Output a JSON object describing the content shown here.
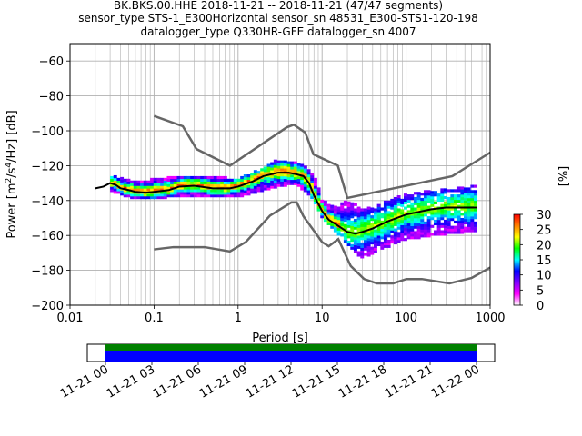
{
  "title": {
    "line1": "BK.BKS.00.HHE   2018-11-21 -- 2018-11-21  (47/47 segments)",
    "line2": "sensor_type STS-1_E300Horizontal sensor_sn 48531_E300-STS1-120-198",
    "line3": "datalogger_type Q330HR-GFE datalogger_sn 4007"
  },
  "chart_data": {
    "type": "heatmap",
    "title": "BK.BKS.00.HHE   2018-11-21 -- 2018-11-21  (47/47 segments)",
    "xlabel": "Period [s]",
    "ylabel": "Power [m2/s4/Hz] [dB]",
    "ylabel_parts": {
      "pre": "Power [m",
      "sup1": "2",
      "mid": "/s",
      "sup2": "4",
      "post": "/Hz] [dB]"
    },
    "x_scale": "log",
    "xlim": [
      0.01,
      1000
    ],
    "ylim": [
      -200,
      -50
    ],
    "x_ticks": [
      0.01,
      0.1,
      1,
      10,
      100,
      1000
    ],
    "x_tick_labels": [
      "0.01",
      "0.1",
      "1",
      "10",
      "100",
      "1000"
    ],
    "y_ticks": [
      -200,
      -180,
      -160,
      -140,
      -120,
      -100,
      -80,
      -60
    ],
    "y_tick_labels": [
      "−200",
      "−180",
      "−160",
      "−140",
      "−120",
      "−100",
      "−80",
      "−60"
    ],
    "grid": true,
    "colorbar": {
      "label": "[%]",
      "range": [
        0,
        30
      ],
      "ticks": [
        0,
        5,
        10,
        15,
        20,
        25,
        30
      ],
      "tick_labels": [
        "0",
        "5",
        "10",
        "15",
        "20",
        "25",
        "30"
      ],
      "colormap_stops": [
        "#ffffff",
        "#ff00ff",
        "#8000ff",
        "#0000ff",
        "#00ffff",
        "#00ff00",
        "#ffff00",
        "#ff8000",
        "#ff0000"
      ]
    },
    "noise_models": [
      {
        "name": "NHNM",
        "color": "#666666",
        "x": [
          0.1,
          0.22,
          0.32,
          0.8,
          3.8,
          4.6,
          6.3,
          7.9,
          15.4,
          20,
          354.8,
          1000
        ],
        "y": [
          -91.5,
          -97.4,
          -110.5,
          -120,
          -98,
          -96.5,
          -101,
          -113.5,
          -120,
          -138.5,
          -126,
          -112.5
        ]
      },
      {
        "name": "NLNM",
        "color": "#666666",
        "x": [
          0.1,
          0.17,
          0.4,
          0.8,
          1.24,
          2.4,
          4.3,
          5,
          6,
          10,
          12,
          15.6,
          21.9,
          31.6,
          45,
          70,
          101,
          154,
          328,
          600,
          1000
        ],
        "y": [
          -168,
          -166.7,
          -166.7,
          -169.2,
          -163.7,
          -148.6,
          -141.1,
          -141.1,
          -149,
          -163.8,
          -166.2,
          -162.1,
          -177.5,
          -185,
          -187.5,
          -187.5,
          -185,
          -185,
          -187.5,
          -184.4,
          -178.4
        ]
      }
    ],
    "mode_curve": {
      "name": "mode",
      "color": "#000000",
      "x": [
        0.02,
        0.025,
        0.03,
        0.035,
        0.04,
        0.05,
        0.06,
        0.08,
        0.1,
        0.15,
        0.2,
        0.3,
        0.5,
        0.8,
        1,
        1.5,
        2,
        3,
        4,
        5,
        6,
        7,
        8,
        10,
        12,
        15,
        20,
        25,
        30,
        40,
        60,
        100,
        200,
        300,
        500,
        700
      ],
      "y": [
        -133,
        -132,
        -130,
        -131,
        -133,
        -134,
        -135,
        -135.5,
        -135,
        -134,
        -132,
        -131.5,
        -133,
        -133,
        -132,
        -129,
        -126,
        -124,
        -124,
        -125,
        -126,
        -130,
        -137,
        -146,
        -151,
        -154,
        -158,
        -159,
        -158,
        -156,
        -152,
        -148,
        -145,
        -144,
        -144,
        -144
      ]
    },
    "pdf_band": {
      "description": "probability density of PSD values, per period",
      "x": [
        0.03,
        0.05,
        0.08,
        0.1,
        0.2,
        0.5,
        1,
        2,
        3,
        5,
        8,
        10,
        15,
        20,
        30,
        50,
        100,
        200,
        500,
        700
      ],
      "y_low": [
        -134,
        -138,
        -139,
        -139,
        -137,
        -138,
        -138,
        -134,
        -132,
        -130,
        -140,
        -150,
        -158,
        -165,
        -173,
        -168,
        -162,
        -160,
        -158,
        -158
      ],
      "y_high": [
        -126,
        -129,
        -129,
        -128,
        -127,
        -127,
        -128,
        -122,
        -117,
        -118,
        -125,
        -140,
        -145,
        -139,
        -146,
        -142,
        -137,
        -135,
        -133,
        -132
      ]
    },
    "timeline": {
      "start_label": "11-21 00",
      "tick_labels": [
        "11-21 00",
        "11-21 03",
        "11-21 06",
        "11-21 09",
        "11-21 12",
        "11-21 15",
        "11-21 18",
        "11-21 21",
        "11-22 00"
      ],
      "data_available_color": "#0000ff",
      "gaps_color": "#008000",
      "coverage_fraction": 1.0
    }
  }
}
